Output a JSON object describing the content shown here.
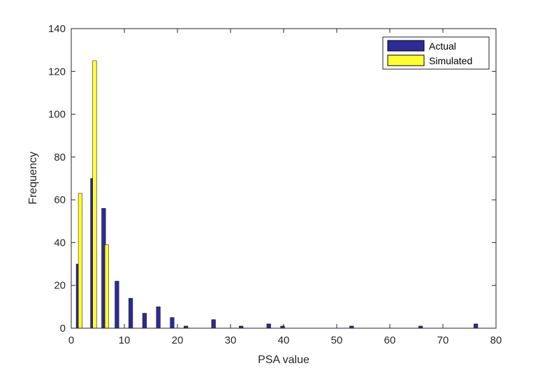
{
  "chart_data": {
    "type": "bar",
    "xlabel": "PSA value",
    "ylabel": "Frequency",
    "xlim": [
      0,
      80
    ],
    "ylim": [
      0,
      140
    ],
    "xticks": [
      0,
      10,
      20,
      30,
      40,
      50,
      60,
      70,
      80
    ],
    "yticks": [
      0,
      20,
      40,
      60,
      80,
      100,
      120,
      140
    ],
    "grid": false,
    "legend_position": "top-right",
    "series": [
      {
        "name": "Actual",
        "color": "#2E2A96",
        "x": [
          1.3,
          4.0,
          6.1,
          8.6,
          11.2,
          13.8,
          16.4,
          19.0,
          21.6,
          24.2,
          26.8,
          29.4,
          32.0,
          34.6,
          37.2,
          39.8,
          42.4,
          45.0,
          47.6,
          50.2,
          52.8,
          55.4,
          58.0,
          60.6,
          63.2,
          65.8,
          68.4,
          71.0,
          73.6,
          76.2
        ],
        "values": [
          30,
          70,
          56,
          22,
          14,
          7,
          10,
          5,
          1,
          0,
          4,
          0,
          1,
          0,
          2,
          1,
          0,
          0,
          0,
          0,
          1,
          0,
          0,
          0,
          0,
          1,
          0,
          0,
          0,
          2
        ]
      },
      {
        "name": "Simulated",
        "color": "#FFFF33",
        "x": [
          1.7,
          4.4,
          6.7
        ],
        "values": [
          63,
          125,
          39
        ]
      }
    ]
  }
}
